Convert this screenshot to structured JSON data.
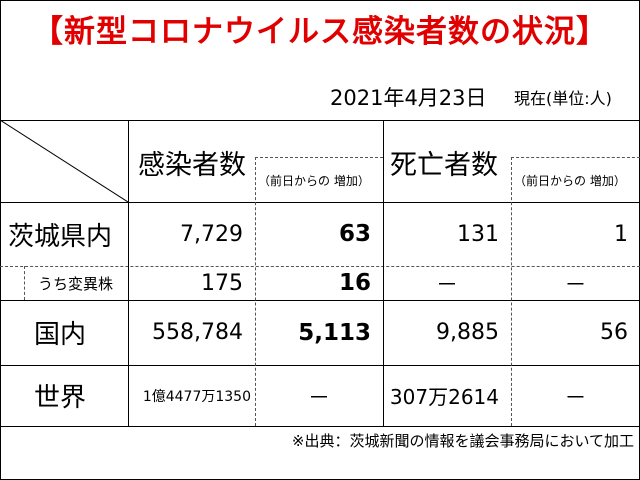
{
  "title": "【新型コロナウイルス感染者数の状況】",
  "date": "2021年4月23日",
  "date_note": "現在(単位:人)",
  "table": {
    "header_infections": "感染者数",
    "header_infections_sub": "（前日からの 増加）",
    "header_deaths": "死亡者数",
    "header_deaths_sub": "（前日からの 増加）",
    "rows": [
      {
        "label": "茨城県内",
        "infections": "7,729",
        "inf_increase": "63",
        "deaths": "131",
        "death_increase": "1"
      },
      {
        "label": "うち変異株",
        "infections": "175",
        "inf_increase": "16",
        "deaths": "－",
        "death_increase": "－"
      },
      {
        "label": "国内",
        "infections": "558,784",
        "inf_increase": "5,113",
        "deaths": "9,885",
        "death_increase": "56"
      },
      {
        "label": "世界",
        "infections": "1億4477万1350",
        "inf_increase": "－",
        "deaths": "307万2614",
        "death_increase": "－"
      }
    ]
  },
  "source": "※出典：茨城新聞の情報を議会事務局において加工"
}
